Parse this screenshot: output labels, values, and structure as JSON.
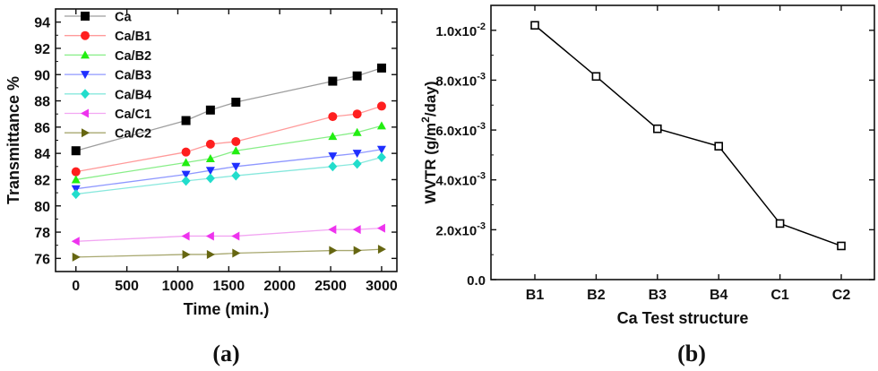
{
  "chart_data": [
    {
      "type": "line",
      "panel_label": "(a)",
      "xlabel": "Time (min.)",
      "ylabel": "Transmittance %",
      "xlim": [
        -200,
        3150
      ],
      "ylim": [
        75,
        95
      ],
      "x_ticks": [
        0,
        500,
        1000,
        1500,
        2000,
        2500,
        3000
      ],
      "y_ticks": [
        76,
        78,
        80,
        82,
        84,
        86,
        88,
        90,
        92,
        94
      ],
      "legend_position": "top-left",
      "x": [
        0,
        1080,
        1320,
        1570,
        2520,
        2760,
        3000
      ],
      "series": [
        {
          "name": "Ca",
          "marker": "square",
          "color": "#000000",
          "line_color": "#9e9e9e",
          "values": [
            84.2,
            86.5,
            87.3,
            87.9,
            89.5,
            89.9,
            90.5
          ]
        },
        {
          "name": "Ca/B1",
          "marker": "circle",
          "color": "#ff1f1f",
          "line_color": "#ff9a9a",
          "values": [
            82.6,
            84.1,
            84.7,
            84.9,
            86.8,
            87.0,
            87.6
          ]
        },
        {
          "name": "Ca/B2",
          "marker": "triangle-up",
          "color": "#22ee11",
          "line_color": "#88ee88",
          "values": [
            82.0,
            83.3,
            83.6,
            84.2,
            85.3,
            85.6,
            86.1
          ]
        },
        {
          "name": "Ca/B3",
          "marker": "triangle-down",
          "color": "#1f2fff",
          "line_color": "#8f98ff",
          "values": [
            81.3,
            82.4,
            82.7,
            83.0,
            83.8,
            84.0,
            84.3
          ]
        },
        {
          "name": "Ca/B4",
          "marker": "diamond",
          "color": "#22ddcc",
          "line_color": "#88e8dd",
          "values": [
            80.9,
            81.9,
            82.1,
            82.3,
            83.0,
            83.2,
            83.7
          ]
        },
        {
          "name": "Ca/C1",
          "marker": "triangle-left",
          "color": "#ee33ee",
          "line_color": "#f2a6f2",
          "values": [
            77.3,
            77.7,
            77.7,
            77.7,
            78.2,
            78.2,
            78.3
          ]
        },
        {
          "name": "Ca/C2",
          "marker": "triangle-right",
          "color": "#666611",
          "line_color": "#a8a870",
          "values": [
            76.1,
            76.3,
            76.3,
            76.4,
            76.6,
            76.6,
            76.7
          ]
        }
      ]
    },
    {
      "type": "line",
      "panel_label": "(b)",
      "xlabel": "Ca Test structure",
      "ylabel": "WVTR (g/m²/day)",
      "categories": [
        "B1",
        "B2",
        "B3",
        "B4",
        "C1",
        "C2"
      ],
      "values": [
        0.0102,
        0.00815,
        0.00605,
        0.00535,
        0.00225,
        0.00135
      ],
      "ylim": [
        0,
        0.011
      ],
      "y_ticks": [
        0,
        0.002,
        0.004,
        0.006,
        0.008,
        0.01
      ],
      "y_tick_labels": [
        {
          "base": "0.0",
          "exp": ""
        },
        {
          "base": "2.0x10",
          "exp": "-3"
        },
        {
          "base": "4.0x10",
          "exp": "-3"
        },
        {
          "base": "6.0x10",
          "exp": "-3"
        },
        {
          "base": "8.0x10",
          "exp": "-3"
        },
        {
          "base": "1.0x10",
          "exp": "-2"
        }
      ],
      "marker": "open-square",
      "color": "#000000"
    }
  ]
}
